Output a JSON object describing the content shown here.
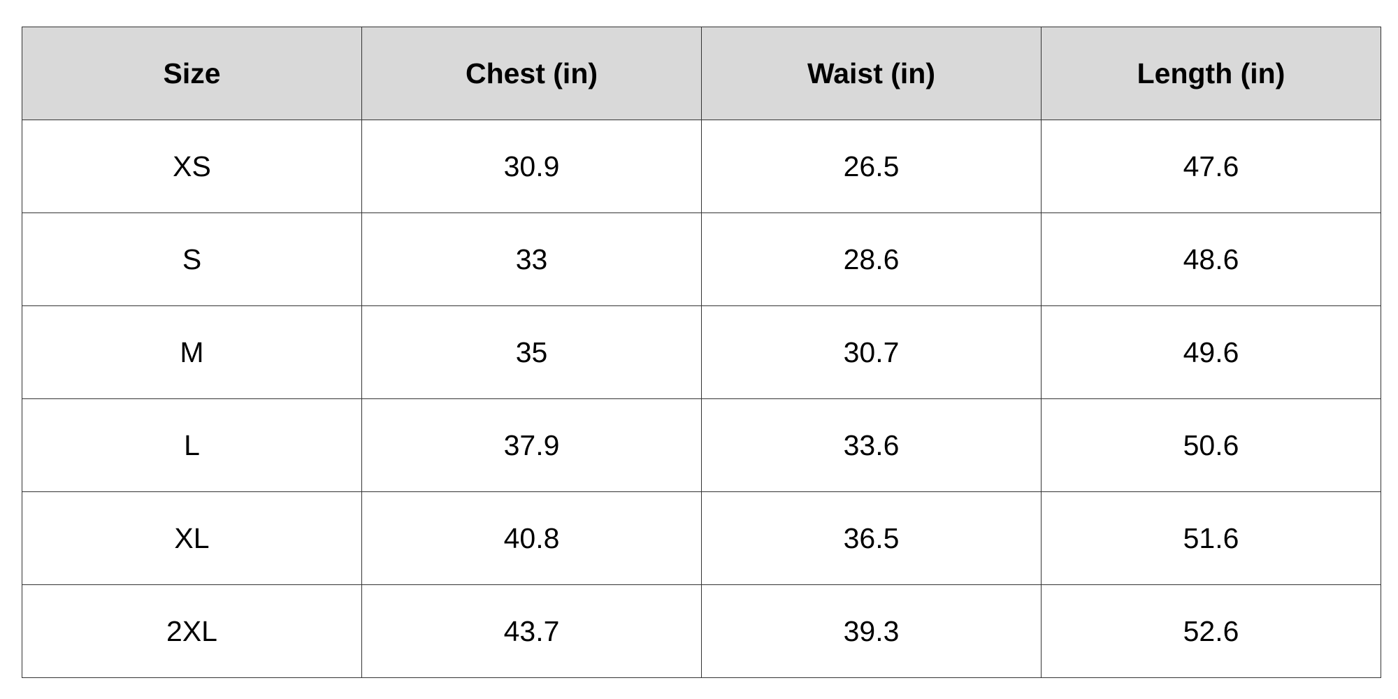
{
  "table": {
    "columns": [
      "Size",
      "Chest (in)",
      "Waist (in)",
      "Length (in)"
    ],
    "rows": [
      [
        "XS",
        "30.9",
        "26.5",
        "47.6"
      ],
      [
        "S",
        "33",
        "28.6",
        "48.6"
      ],
      [
        "M",
        "35",
        "30.7",
        "49.6"
      ],
      [
        "L",
        "37.9",
        "33.6",
        "50.6"
      ],
      [
        "XL",
        "40.8",
        "36.5",
        "51.6"
      ],
      [
        "2XL",
        "43.7",
        "39.3",
        "52.6"
      ]
    ],
    "header_bg": "#d9d9d9",
    "border_color": "#333333"
  }
}
